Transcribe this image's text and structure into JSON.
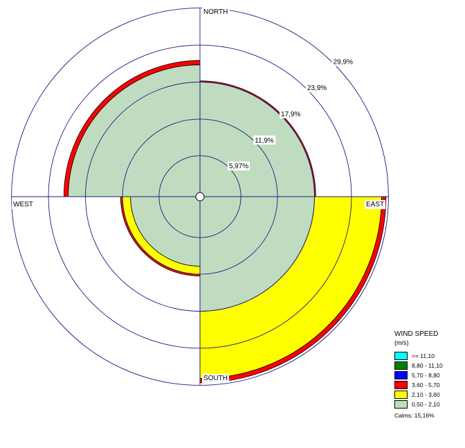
{
  "chart_data": {
    "type": "windrose",
    "directions": [
      "NORTH",
      "EAST",
      "SOUTH",
      "WEST"
    ],
    "sector_directions_deg": [
      45,
      135,
      225,
      315
    ],
    "sector_directions_names": [
      "NE",
      "SE",
      "SW",
      "NW"
    ],
    "ring_values_pct": [
      5.97,
      11.9,
      17.9,
      23.9,
      29.9
    ],
    "ring_labels": [
      "5,97%",
      "11,9%",
      "17,9%",
      "23,9%",
      "29,9%"
    ],
    "speed_bins": [
      {
        "range": "0,50 - 2,10",
        "color": "#c0dcc0"
      },
      {
        "range": "2,10 - 3,60",
        "color": "#ffff00"
      },
      {
        "range": "3,60 - 5,70",
        "color": "#ff0000"
      },
      {
        "range": "5,70 - 8,80",
        "color": "#0000ff"
      },
      {
        "range": "8,80 - 11,10",
        "color": "#008000"
      },
      {
        "range": ">= 11,10",
        "color": "#00ffff"
      }
    ],
    "sectors": [
      {
        "direction": "NE",
        "center_deg": 45,
        "cumulative_pct": [
          17.9,
          17.9,
          18.1
        ]
      },
      {
        "direction": "SE",
        "center_deg": 135,
        "cumulative_pct": [
          17.9,
          28.8,
          29.5
        ]
      },
      {
        "direction": "SW",
        "center_deg": 225,
        "cumulative_pct": [
          10.6,
          11.9,
          12.2
        ]
      },
      {
        "direction": "NW",
        "center_deg": 315,
        "cumulative_pct": [
          20.7,
          20.7,
          21.4
        ]
      },
      {
        "direction": "N-E-S-W",
        "center_deg": 0,
        "cumulative_pct": [
          7.9,
          10.1,
          10.1
        ]
      }
    ]
  },
  "legend": {
    "title": "WIND SPEED",
    "units": "(m/s)",
    "items": [
      {
        "label": ">= 11,10",
        "color": "#00ffff"
      },
      {
        "label": "8,80 - 11,10",
        "color": "#008000"
      },
      {
        "label": "5,70 - 8,80",
        "color": "#0000ff"
      },
      {
        "label": "3,60 - 5,70",
        "color": "#ff0000"
      },
      {
        "label": "2,10 - 3,60",
        "color": "#ffff00"
      },
      {
        "label": "0,50 - 2,10",
        "color": "#c0dcc0"
      }
    ],
    "calms": "Calms: 15,16%"
  },
  "colors": {
    "grid": "#1a1a80",
    "outline": "#000000"
  }
}
